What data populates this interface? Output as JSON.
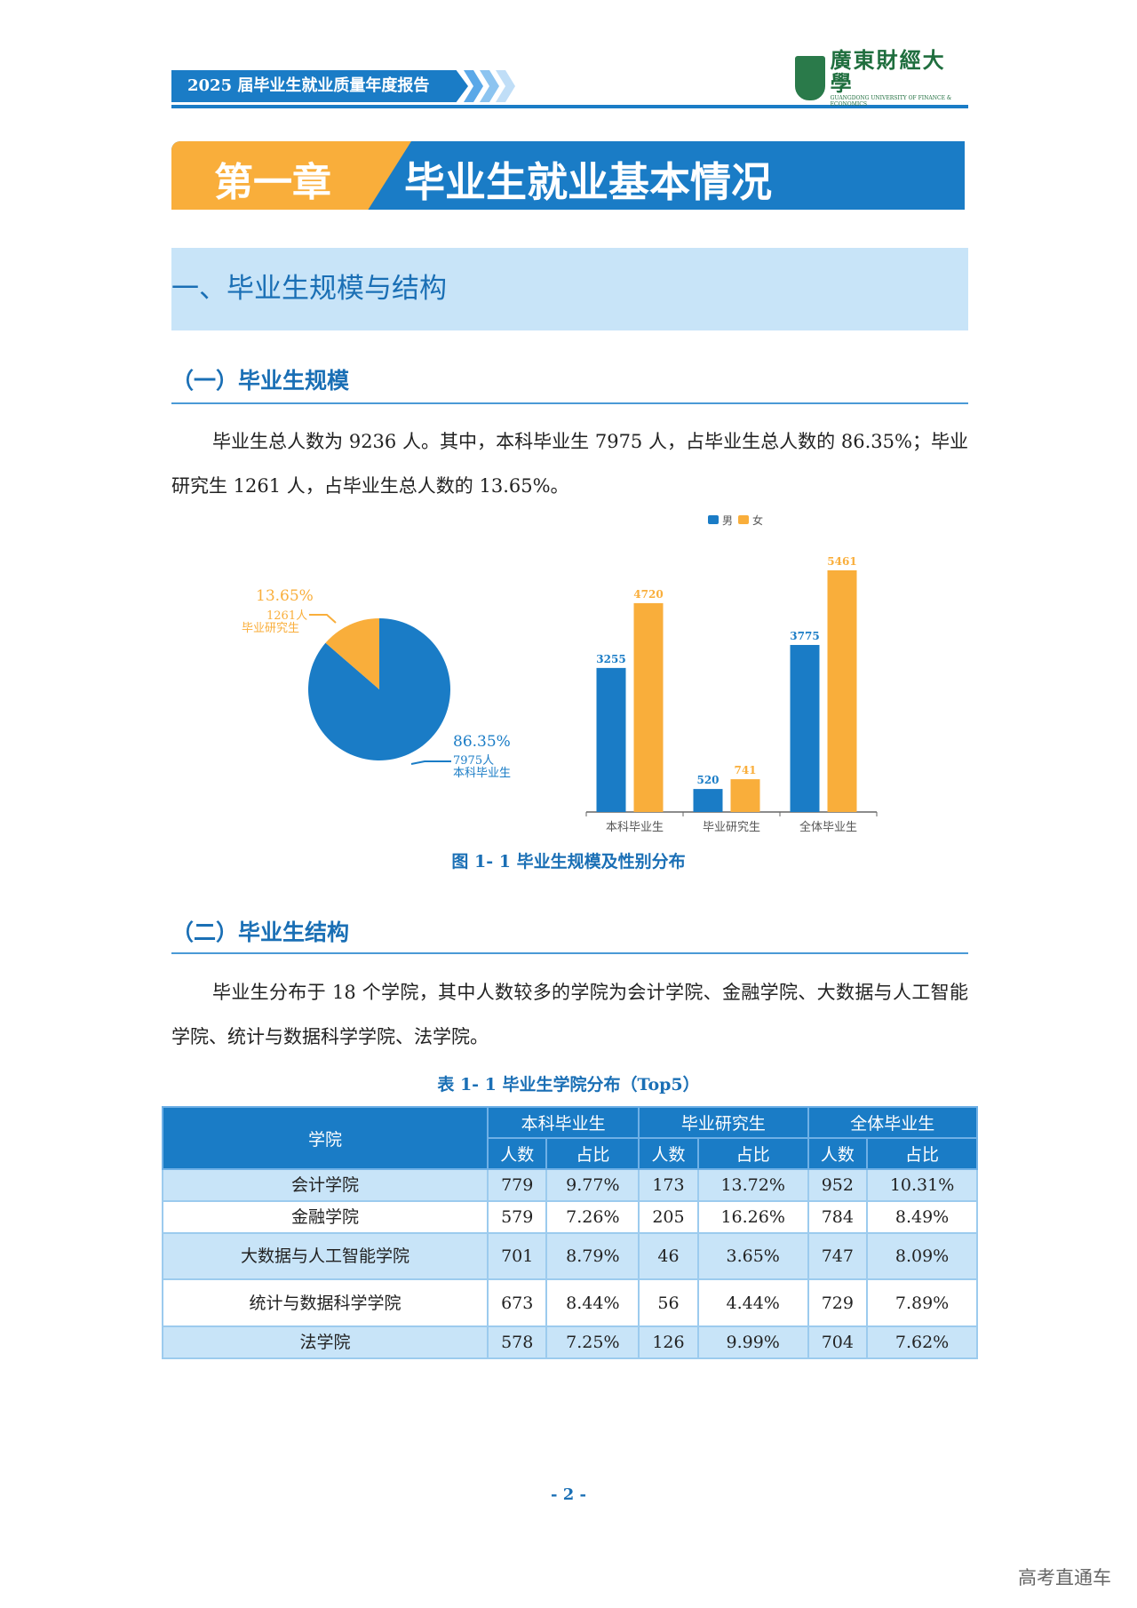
{
  "header": {
    "report_title": "2025 届毕业生就业质量年度报告",
    "university_name": "廣東財經大學",
    "university_en": "GUANGDONG UNIVERSITY OF FINANCE & ECONOMICS"
  },
  "chapter": {
    "number": "第一章",
    "title": "毕业生就业基本情况"
  },
  "section": {
    "title": "一、毕业生规模与结构"
  },
  "sub1": {
    "title": "（一）毕业生规模",
    "paragraph": "毕业生总人数为 9236 人。其中，本科毕业生 7975 人，占毕业生总人数的 86.35%；毕业研究生 1261 人，占毕业生总人数的 13.65%。"
  },
  "chart_data": [
    {
      "type": "pie",
      "slices": [
        {
          "label": "本科毕业生",
          "count_label": "7975人",
          "value": 7975,
          "percent": "86.35%",
          "color": "#1a7cc6"
        },
        {
          "label": "毕业研究生",
          "count_label": "1261人",
          "value": 1261,
          "percent": "13.65%",
          "color": "#f9ae3b"
        }
      ]
    },
    {
      "type": "bar",
      "categories": [
        "本科毕业生",
        "毕业研究生",
        "全体毕业生"
      ],
      "series": [
        {
          "name": "男",
          "values": [
            3255,
            520,
            3775
          ],
          "color": "#1a7cc6"
        },
        {
          "name": "女",
          "values": [
            4720,
            741,
            5461
          ],
          "color": "#f9ae3b"
        }
      ],
      "ylim": [
        0,
        5461
      ],
      "legend": "top"
    }
  ],
  "figure_caption": "图 1- 1  毕业生规模及性别分布",
  "sub2": {
    "title": "（二）毕业生结构",
    "paragraph": "毕业生分布于 18 个学院，其中人数较多的学院为会计学院、金融学院、大数据与人工智能学院、统计与数据科学学院、法学院。"
  },
  "table": {
    "caption": "表 1- 1  毕业生学院分布（Top5）",
    "col_college": "学院",
    "groups": [
      "本科毕业生",
      "毕业研究生",
      "全体毕业生"
    ],
    "sub_headers": [
      "人数",
      "占比"
    ],
    "rows": [
      [
        "会计学院",
        "779",
        "9.77%",
        "173",
        "13.72%",
        "952",
        "10.31%"
      ],
      [
        "金融学院",
        "579",
        "7.26%",
        "205",
        "16.26%",
        "784",
        "8.49%"
      ],
      [
        "大数据与人工智能学院",
        "701",
        "8.79%",
        "46",
        "3.65%",
        "747",
        "8.09%"
      ],
      [
        "统计与数据科学学院",
        "673",
        "8.44%",
        "56",
        "4.44%",
        "729",
        "7.89%"
      ],
      [
        "法学院",
        "578",
        "7.25%",
        "126",
        "9.99%",
        "704",
        "7.62%"
      ]
    ]
  },
  "page_number": "- 2 -",
  "watermark": "高考直通车"
}
